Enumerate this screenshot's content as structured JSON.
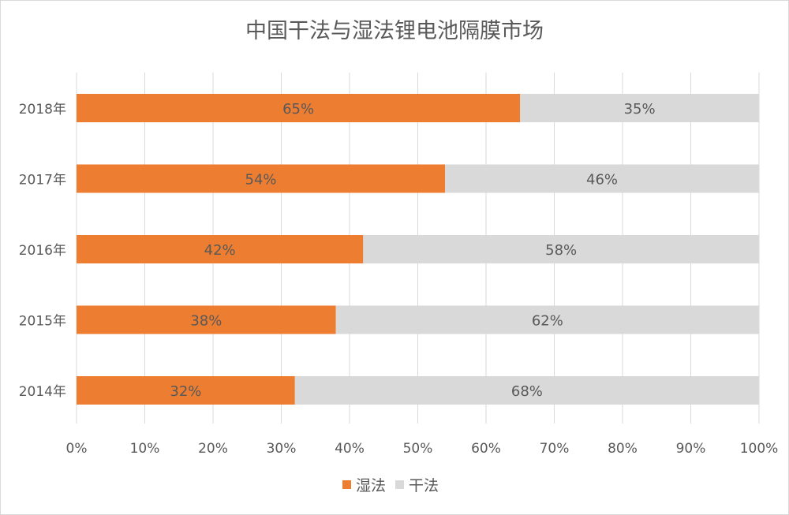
{
  "chart_data": {
    "type": "bar",
    "orientation": "horizontal",
    "stacked": true,
    "title": "中国干法与湿法锂电池隔膜市场",
    "categories": [
      "2018年",
      "2017年",
      "2016年",
      "2015年",
      "2014年"
    ],
    "series": [
      {
        "name": "湿法",
        "color": "#ED7D31",
        "values": [
          65,
          54,
          42,
          38,
          32
        ],
        "labels": [
          "65%",
          "54%",
          "42%",
          "38%",
          "32%"
        ]
      },
      {
        "name": "干法",
        "color": "#D9D9D9",
        "values": [
          35,
          46,
          58,
          62,
          68
        ],
        "labels": [
          "35%",
          "46%",
          "58%",
          "62%",
          "68%"
        ]
      }
    ],
    "xlim": [
      0,
      100
    ],
    "xticks": [
      "0%",
      "10%",
      "20%",
      "30%",
      "40%",
      "50%",
      "60%",
      "70%",
      "80%",
      "90%",
      "100%"
    ],
    "grid": true,
    "legend_position": "bottom"
  }
}
